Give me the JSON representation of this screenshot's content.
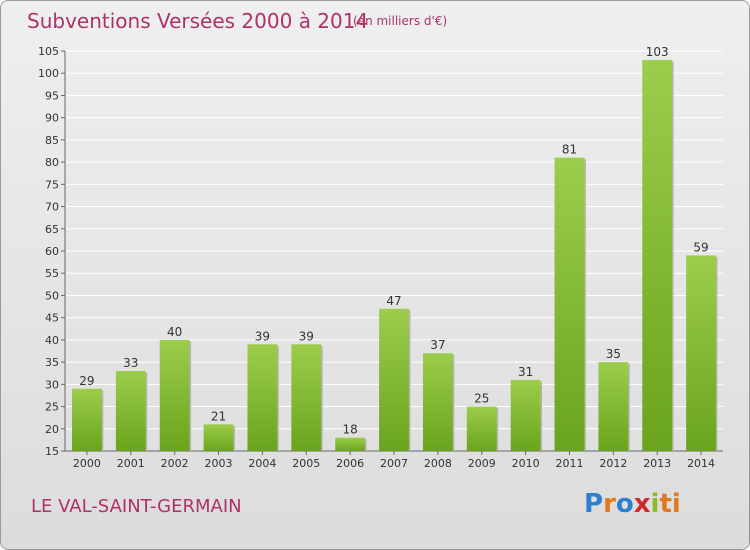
{
  "title": "Subventions Versées 2000 à 2014",
  "subtitle": "(en milliers d'€)",
  "commune": "LE VAL-SAINT-GERMAIN",
  "logo": {
    "text": "Proxiti"
  },
  "colors": {
    "title": "#b0306a",
    "bar_top": "#9ccd4c",
    "bar_bottom": "#6aa41c",
    "grid": "#ffffff",
    "axis_text": "#333333"
  },
  "chart_data": {
    "type": "bar",
    "categories": [
      "2000",
      "2001",
      "2002",
      "2003",
      "2004",
      "2005",
      "2006",
      "2007",
      "2008",
      "2009",
      "2010",
      "2011",
      "2012",
      "2013",
      "2014"
    ],
    "values": [
      29,
      33,
      40,
      21,
      39,
      39,
      18,
      47,
      37,
      25,
      31,
      81,
      35,
      103,
      59
    ],
    "ylim": [
      15,
      105
    ],
    "yticks": [
      15,
      20,
      25,
      30,
      35,
      40,
      45,
      50,
      55,
      60,
      65,
      70,
      75,
      80,
      85,
      90,
      95,
      100,
      105
    ],
    "grid": true,
    "data_labels": true
  }
}
